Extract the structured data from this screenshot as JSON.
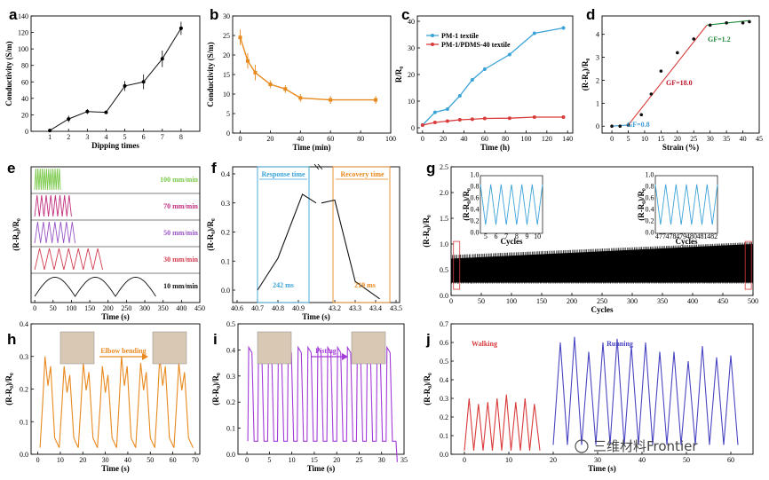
{
  "colors": {
    "orange": "#e8891e",
    "blue": "#3aa3d8",
    "red": "#d93b3b",
    "green": "#7ac94a",
    "magenta": "#c2307f",
    "purple": "#9a55c8",
    "crimson": "#d23c50",
    "black": "#111111",
    "violet": "#a33bd8",
    "navy": "#4a45c2",
    "runblue": "#5a4fc9",
    "fitfill": "#8f3bdc",
    "darkgreen": "#1f8a3a",
    "gfred": "#c0142c",
    "gfblue": "#3a9ad4"
  },
  "watermark": "三维材料Frontier",
  "chart_data": [
    {
      "panel": "a",
      "type": "line",
      "x": [
        1,
        2,
        3,
        4,
        5,
        6,
        7,
        8
      ],
      "values": [
        1,
        15,
        24,
        23,
        55,
        60,
        88,
        125
      ],
      "errors": [
        2,
        4,
        3,
        2,
        6,
        9,
        10,
        8
      ],
      "xlim": [
        0,
        9
      ],
      "ylim": [
        0,
        140
      ],
      "xticks": [
        1,
        2,
        3,
        4,
        5,
        6,
        7,
        8
      ],
      "yticks": [
        0,
        20,
        40,
        60,
        80,
        100,
        120,
        140
      ],
      "xlabel": "Dipping times",
      "ylabel": "Conductivity (S/m)",
      "grid": false
    },
    {
      "panel": "b",
      "type": "line",
      "x": [
        0,
        5,
        10,
        20,
        30,
        40,
        60,
        90
      ],
      "values": [
        24.5,
        18.5,
        15.5,
        12.5,
        11.3,
        9,
        8.5,
        8.5
      ],
      "errors": [
        2,
        2,
        2,
        1,
        1,
        1,
        1,
        1
      ],
      "xlim": [
        -5,
        100
      ],
      "ylim": [
        0,
        30
      ],
      "xticks": [
        0,
        20,
        40,
        60,
        80,
        100
      ],
      "yticks": [
        0,
        5,
        10,
        15,
        20,
        25,
        30
      ],
      "xlabel": "Time (min)",
      "ylabel": "Conductivity (S/m)"
    },
    {
      "panel": "c",
      "type": "line",
      "x": [
        0,
        12,
        24,
        36,
        48,
        60,
        84,
        108,
        136
      ],
      "series": [
        {
          "name": "PM-1 textile",
          "values": [
            1,
            5.8,
            7,
            12,
            18,
            22,
            27.5,
            35.5,
            37.5
          ]
        },
        {
          "name": "PM-1/PDMS-40 textile",
          "values": [
            1,
            2,
            2.5,
            3,
            3.2,
            3.5,
            3.6,
            4,
            4
          ]
        }
      ],
      "xlim": [
        -5,
        145
      ],
      "ylim": [
        -2,
        42
      ],
      "xticks": [
        0,
        20,
        40,
        60,
        80,
        100,
        120,
        140
      ],
      "yticks": [
        0,
        10,
        20,
        30,
        40
      ],
      "xlabel": "Time (h)",
      "ylabel": "R/R₀",
      "legend": "top-left"
    },
    {
      "panel": "d",
      "type": "scatter",
      "x": [
        0,
        2.5,
        5,
        9,
        12,
        15,
        20,
        25,
        30,
        35,
        40,
        42
      ],
      "values": [
        0,
        0,
        0.05,
        0.5,
        1.4,
        2.4,
        3.2,
        3.8,
        4.4,
        4.5,
        4.5,
        4.55
      ],
      "fits": [
        {
          "label": "GF=0.8",
          "x": [
            0,
            5
          ],
          "y": [
            0,
            0.05
          ]
        },
        {
          "label": "GF=18.0",
          "x": [
            5,
            29
          ],
          "y": [
            0.05,
            4.4
          ]
        },
        {
          "label": "GF=1.2",
          "x": [
            29,
            42
          ],
          "y": [
            4.4,
            4.6
          ]
        }
      ],
      "xlim": [
        -3,
        45
      ],
      "ylim": [
        -0.3,
        4.8
      ],
      "xticks": [
        0,
        5,
        10,
        15,
        20,
        25,
        30,
        35,
        40,
        45
      ],
      "yticks": [
        0,
        1,
        2,
        3,
        4
      ],
      "xlabel": "Strain (%)",
      "ylabel": "(R-R₀)/R₀"
    },
    {
      "panel": "e",
      "type": "line",
      "traces": [
        {
          "label": "100 mm/min",
          "cycles": 12,
          "duration": 70
        },
        {
          "label": "70 mm/min",
          "cycles": 8,
          "duration": 100
        },
        {
          "label": "50 mm/min",
          "cycles": 7,
          "duration": 110
        },
        {
          "label": "30 mm/min",
          "cycles": 7,
          "duration": 185
        },
        {
          "label": "10 mm/min",
          "cycles": 3,
          "duration": 330
        }
      ],
      "xlim": [
        -10,
        450
      ],
      "xticks": [
        0,
        50,
        100,
        150,
        200,
        250,
        300,
        350,
        400,
        450
      ],
      "xlabel": "Time (s)",
      "ylabel": "(R-R₀)/R₀"
    },
    {
      "panel": "f",
      "type": "line",
      "x": [
        40.7,
        40.8,
        40.92,
        43.2,
        43.3,
        43.42
      ],
      "values": [
        0,
        0.11,
        0.33,
        0.31,
        0.03,
        -0.03
      ],
      "response_label": "Response time",
      "recovery_label": "Recovery time",
      "response_value": "242 ms",
      "recovery_value": "219 ms",
      "xticks": [
        "40.6",
        "40.7",
        "40.8",
        "40.9",
        "43.2",
        "43.3",
        "43.4",
        "43.5"
      ],
      "yticks": [
        "0.0",
        "0.1",
        "0.2",
        "0.3",
        "0.4"
      ],
      "xlabel": "Time (s)",
      "ylabel": "(R-R₀)/R₀"
    },
    {
      "panel": "g",
      "type": "line",
      "cycles": 500,
      "band_bottom": [
        0.25,
        0.25
      ],
      "band_top": [
        0.75,
        1.0
      ],
      "xlim": [
        0,
        500
      ],
      "ylim": [
        0,
        2.5
      ],
      "xticks": [
        0,
        50,
        100,
        150,
        200,
        250,
        300,
        350,
        400,
        450,
        500
      ],
      "yticks": [
        "0.0",
        "0.5",
        "1.0",
        "1.5",
        "2.0",
        "2.5"
      ],
      "xlabel": "Cycles",
      "ylabel": "(R-R₀)/R₀",
      "inset1": {
        "xticks": [
          5,
          6,
          7,
          8,
          9,
          10
        ],
        "yticks": [
          "0.0",
          "0.2",
          "0.4",
          "0.6",
          "0.8",
          "1.0"
        ],
        "xlabel": "Cycles",
        "ylabel": "(R-R₀)/R₀"
      },
      "inset2": {
        "xticks": [
          477,
          478,
          479,
          480,
          481,
          482
        ],
        "yticks": [
          "0.0",
          "0.2",
          "0.4",
          "0.6",
          "0.8",
          "1.0"
        ],
        "xlabel": "Cycles",
        "ylabel": "(R-R₀)/R₀"
      }
    },
    {
      "panel": "h",
      "type": "line",
      "peaks": [
        0.3,
        0.27,
        0.28,
        0.27,
        0.3,
        0.28,
        0.3,
        0.28
      ],
      "xlim": [
        -3,
        72
      ],
      "ylim": [
        0,
        0.4
      ],
      "xticks": [
        0,
        10,
        20,
        30,
        40,
        50,
        60,
        70
      ],
      "yticks": [
        "0.0",
        "0.1",
        "0.2",
        "0.3",
        "0.4"
      ],
      "xlabel": "Time (s)",
      "ylabel": "(R-R₀)/R₀",
      "label": "Elbow bending"
    },
    {
      "panel": "i",
      "type": "line",
      "peaks": [
        0.41,
        0.41,
        0.41,
        0.41,
        0.41,
        0.41,
        0.41,
        0.41,
        0.41,
        0.41,
        0.41,
        0.41,
        0.41,
        0.41,
        0.41
      ],
      "xlim": [
        -2,
        35
      ],
      "ylim": [
        0,
        0.5
      ],
      "xticks": [
        0,
        5,
        10,
        15,
        20,
        25,
        30,
        35
      ],
      "yticks": [
        "0.0",
        "0.1",
        "0.2",
        "0.3",
        "0.4",
        "0.5"
      ],
      "xlabel": "Time (s)",
      "ylabel": "(R-R₀)/R₀",
      "label": "Fisting"
    },
    {
      "panel": "j",
      "type": "line",
      "series": [
        {
          "name": "Walking",
          "peaks": [
            0.3,
            0.27,
            0.28,
            0.3,
            0.32,
            0.28,
            0.3,
            0.27
          ]
        },
        {
          "name": "Running",
          "peaks": [
            0.6,
            0.63,
            0.55,
            0.6,
            0.62,
            0.58,
            0.6,
            0.55,
            0.55,
            0.5,
            0.58,
            0.52,
            0.53
          ]
        }
      ],
      "xlim": [
        -3,
        65
      ],
      "ylim": [
        0,
        0.7
      ],
      "xticks": [
        0,
        10,
        20,
        30,
        40,
        50,
        60
      ],
      "yticks": [
        "0.0",
        "0.1",
        "0.2",
        "0.3",
        "0.4",
        "0.5",
        "0.6",
        "0.7"
      ],
      "xlabel": "Time (s)",
      "ylabel": "(R-R₀)/R₀"
    }
  ]
}
